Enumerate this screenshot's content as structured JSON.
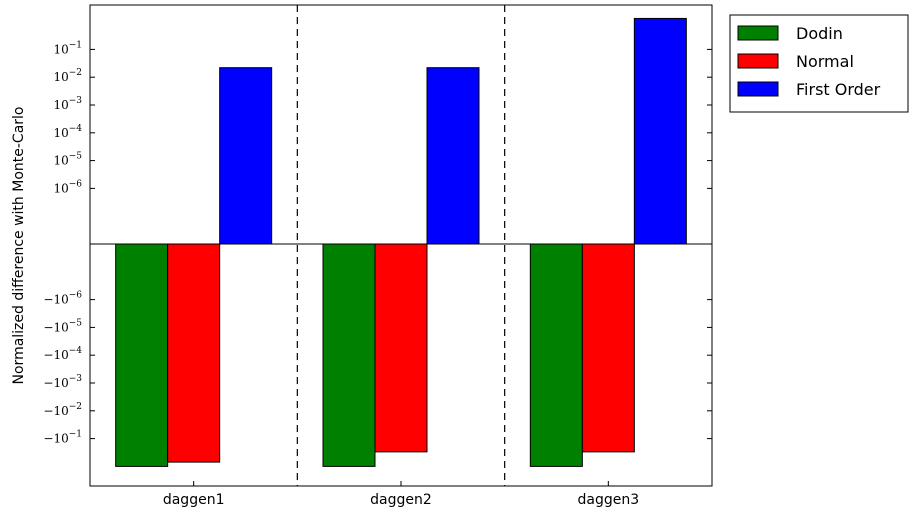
{
  "chart_data": {
    "type": "bar",
    "scale": "symlog",
    "linthresh": 1e-07,
    "categories": [
      "daggen1",
      "daggen2",
      "daggen3"
    ],
    "ylabel": "Normalized difference with Monte-Carlo",
    "ylim": [
      -100,
      100
    ],
    "y_ticks": [
      {
        "exp": -1,
        "sign": 1,
        "label": "10^-1"
      },
      {
        "exp": -2,
        "sign": 1,
        "label": "10^-2"
      },
      {
        "exp": -3,
        "sign": 1,
        "label": "10^-3"
      },
      {
        "exp": -4,
        "sign": 1,
        "label": "10^-4"
      },
      {
        "exp": -5,
        "sign": 1,
        "label": "10^-5"
      },
      {
        "exp": -6,
        "sign": 1,
        "label": "10^-6"
      },
      {
        "exp": -6,
        "sign": -1,
        "label": "-10^-6"
      },
      {
        "exp": -5,
        "sign": -1,
        "label": "-10^-5"
      },
      {
        "exp": -4,
        "sign": -1,
        "label": "-10^-4"
      },
      {
        "exp": -3,
        "sign": -1,
        "label": "-10^-3"
      },
      {
        "exp": -2,
        "sign": -1,
        "label": "-10^-2"
      },
      {
        "exp": -1,
        "sign": -1,
        "label": "-10^-1"
      }
    ],
    "series": [
      {
        "name": "Dodin",
        "color": "#008000",
        "values": [
          -1.0,
          -1.0,
          -1.0
        ]
      },
      {
        "name": "Normal",
        "color": "#ff0000",
        "values": [
          -0.7,
          -0.3,
          -0.3
        ]
      },
      {
        "name": "First Order",
        "color": "#0000ff",
        "values": [
          0.022,
          0.022,
          1.3
        ]
      }
    ],
    "category_separators": "dashed",
    "legend_position": "outside-top-right",
    "grid": false
  }
}
